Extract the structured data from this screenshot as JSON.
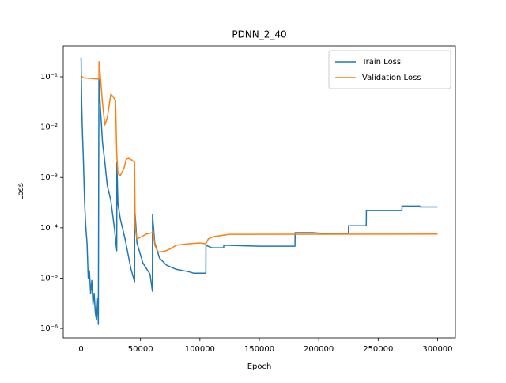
{
  "chart_data": {
    "type": "line",
    "title": "PDNN_2_40",
    "x_label": "Epoch",
    "y_label": "Loss",
    "y_scale": "log",
    "legend": "upper right",
    "xlim": [
      -15000,
      315000
    ],
    "xticks": [
      0,
      50000,
      100000,
      150000,
      200000,
      250000,
      300000
    ],
    "ylim": [
      6.5e-07,
      0.41
    ],
    "yticks": [
      {
        "value": 1e-06,
        "label": "10⁻⁶"
      },
      {
        "value": 1e-05,
        "label": "10⁻⁵"
      },
      {
        "value": 0.0001,
        "label": "10⁻⁴"
      },
      {
        "value": 0.001,
        "label": "10⁻³"
      },
      {
        "value": 0.01,
        "label": "10⁻²"
      },
      {
        "value": 0.1,
        "label": "10⁻¹"
      }
    ],
    "series": [
      {
        "name": "Train Loss",
        "color": "#1f77b4",
        "x": [
          0,
          500,
          1000,
          2000,
          3000,
          4000,
          5000,
          6000,
          7000,
          8000,
          9000,
          10000,
          11000,
          12000,
          13000,
          14000,
          14500,
          15000,
          16000,
          18000,
          20000,
          22000,
          25000,
          28000,
          30000,
          30100,
          31000,
          33000,
          37000,
          42000,
          45000,
          45100,
          47000,
          52000,
          58000,
          60000,
          60100,
          62000,
          66000,
          72000,
          80000,
          90000,
          95000,
          105000,
          105100,
          110000,
          120000,
          120100,
          135000,
          150000,
          180000,
          180100,
          195000,
          210000,
          225000,
          225100,
          240000,
          240100,
          270000,
          270100,
          285000,
          285100,
          300000
        ],
        "values": [
          0.24,
          0.03,
          0.01,
          0.002,
          0.0003,
          0.0001,
          5e-05,
          1e-05,
          1.4e-05,
          5e-06,
          9e-06,
          3e-06,
          5e-06,
          2e-06,
          1.5e-06,
          4e-06,
          1.2e-06,
          0.09,
          0.03,
          0.005,
          0.002,
          0.0007,
          0.00035,
          0.0001,
          3.5e-05,
          0.002,
          0.0003,
          0.00015,
          6e-05,
          1.5e-05,
          8.5e-06,
          0.00026,
          5e-05,
          2e-05,
          1.2e-05,
          5.5e-06,
          0.00018,
          5e-05,
          2.5e-05,
          1.8e-05,
          1.5e-05,
          1.35e-05,
          1.25e-05,
          1.25e-05,
          4.5e-05,
          4e-05,
          4e-05,
          4.5e-05,
          4.4e-05,
          4.3e-05,
          4.3e-05,
          8e-05,
          8e-05,
          7.5e-05,
          7.5e-05,
          0.00011,
          0.00011,
          0.00022,
          0.00022,
          0.00027,
          0.00027,
          0.00026,
          0.00026
        ]
      },
      {
        "name": "Validation Loss",
        "color": "#ff7f0e",
        "x": [
          0,
          1000,
          2000,
          15000,
          15100,
          16000,
          18000,
          20000,
          22000,
          25000,
          27000,
          29000,
          30000,
          31000,
          33000,
          36000,
          38000,
          40000,
          43000,
          45000,
          45500,
          47000,
          50000,
          55000,
          60000,
          60500,
          62000,
          65000,
          70000,
          75000,
          80000,
          90000,
          100000,
          105000,
          107000,
          112000,
          125000,
          300000
        ],
        "values": [
          0.09,
          0.1,
          0.095,
          0.09,
          0.2,
          0.12,
          0.03,
          0.011,
          0.015,
          0.045,
          0.04,
          0.033,
          0.003,
          0.0012,
          0.0011,
          0.0015,
          0.0023,
          0.0024,
          0.0022,
          0.002,
          0.0001,
          6e-05,
          6.5e-05,
          7.5e-05,
          8e-05,
          9e-05,
          4.5e-05,
          3.3e-05,
          3.4e-05,
          3.8e-05,
          4.5e-05,
          4.8e-05,
          5e-05,
          4.8e-05,
          6e-05,
          6.7e-05,
          7.4e-05,
          7.5e-05
        ]
      }
    ]
  }
}
